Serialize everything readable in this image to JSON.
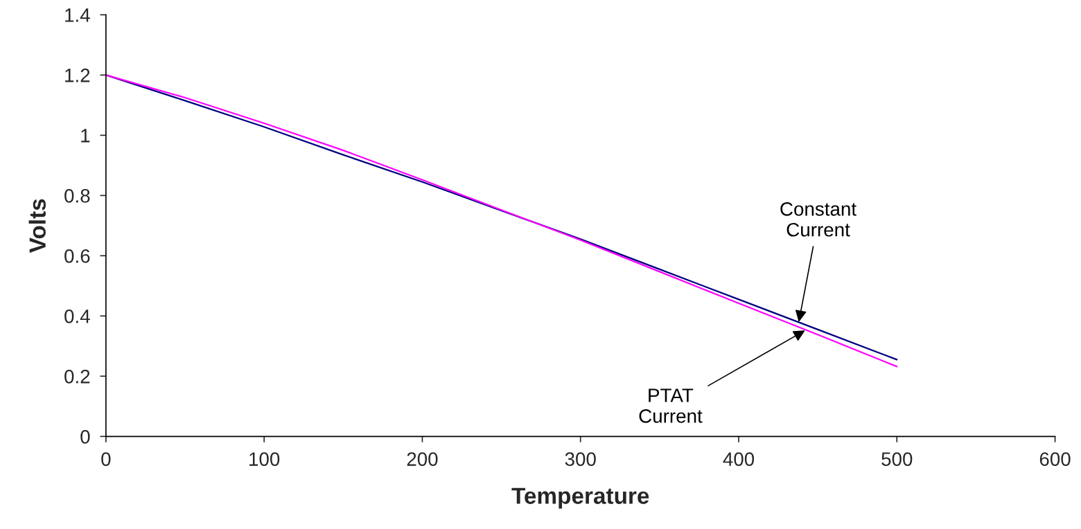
{
  "chart_data": {
    "type": "line",
    "xlabel": "Temperature",
    "ylabel": "Volts",
    "x": [
      0,
      50,
      100,
      150,
      200,
      250,
      300,
      350,
      400,
      450,
      500
    ],
    "series": [
      {
        "color": "#000080",
        "values": [
          1.2,
          1.115,
          1.028,
          0.935,
          0.845,
          0.75,
          0.655,
          0.555,
          0.455,
          0.355,
          0.255
        ]
      },
      {
        "color": "#ff00ff",
        "values": [
          1.2,
          1.125,
          1.04,
          0.95,
          0.852,
          0.752,
          0.652,
          0.547,
          0.442,
          0.338,
          0.232
        ]
      }
    ],
    "xlim": [
      0,
      600
    ],
    "xticks": [
      0,
      100,
      200,
      300,
      400,
      500,
      600
    ],
    "ylim": [
      0,
      1.4
    ],
    "yticks": [
      0,
      0.2,
      0.4,
      0.6,
      0.8,
      1,
      1.2,
      1.4
    ],
    "grid": false,
    "legend": false,
    "marker": "none",
    "line_style": "solid",
    "annotations": [
      {
        "text": "Constant\nCurrent",
        "x": 438,
        "y": 0.38
      },
      {
        "text": "PTAT\nCurrent",
        "x": 442,
        "y": 0.352
      }
    ]
  }
}
